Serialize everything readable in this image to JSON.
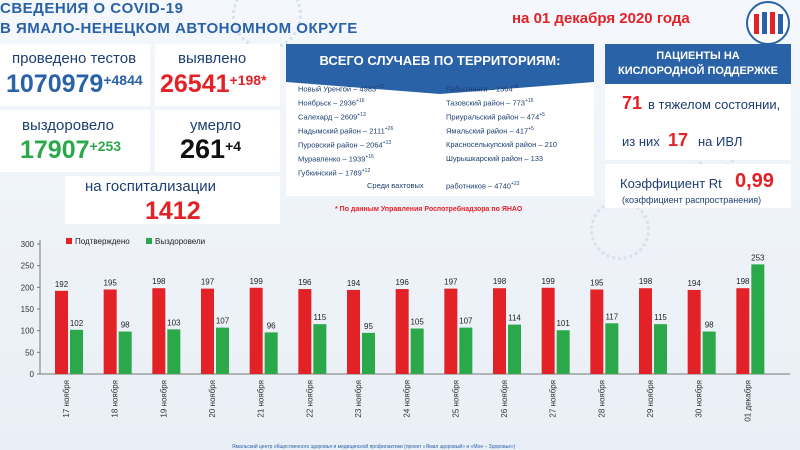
{
  "header": {
    "title_line1": "СВЕДЕНИЯ О COVID-19",
    "title_line2": "В ЯМАЛО-НЕНЕЦКОМ АВТОНОМНОМ ОКРУГЕ",
    "date": "на 01 декабря 2020 года"
  },
  "stats": {
    "tests_label": "проведено тестов",
    "tests_value": "1070979",
    "tests_delta": "+4844",
    "detected_label": "выявлено",
    "detected_value": "26541",
    "detected_delta": "+198*",
    "recovered_label": "выздоровело",
    "recovered_value": "17907",
    "recovered_delta": "+253",
    "died_label": "умерло",
    "died_value": "261",
    "died_delta": "+4",
    "hospital_label": "на госпитализации",
    "hospital_value": "1412"
  },
  "territories": {
    "header": "ВСЕГО СЛУЧАЕВ ПО ТЕРРИТОРИЯМ:",
    "left": [
      {
        "name": "Новый Уренгой – 4983",
        "delta": "+23"
      },
      {
        "name": "Ноябрьск – 2936",
        "delta": "+16"
      },
      {
        "name": "Салехард – 2609",
        "delta": "+13"
      },
      {
        "name": "Надымский район – 2111",
        "delta": "+26"
      },
      {
        "name": "Пуровский район – 2064",
        "delta": "+13"
      },
      {
        "name": "Муравленко – 1939",
        "delta": "+16"
      },
      {
        "name": "Губкинский – 1789",
        "delta": "+12"
      }
    ],
    "right": [
      {
        "name": "Лабытнанги – 1364",
        "delta": "+5"
      },
      {
        "name": "Тазовский район – 773",
        "delta": "+15"
      },
      {
        "name": "Приуральский район – 474",
        "delta": "+5"
      },
      {
        "name": "Ямальский район – 417",
        "delta": "+5"
      },
      {
        "name": "Красноселькупский район – 210",
        "delta": ""
      },
      {
        "name": "Шурышкарский район – 133",
        "delta": ""
      }
    ],
    "shift_label": "Среди вахтовых",
    "shift_label2": "работников – 4740",
    "shift_delta": "+23"
  },
  "note": "* По данным Управления Роспотребнадзора по ЯНАО",
  "oxygen": {
    "header_line1": "ПАЦИЕНТЫ НА",
    "header_line2": "КИСЛОРОДНОЙ ПОДДЕРЖКЕ",
    "severe_value": "71",
    "severe_label": "в тяжелом состоянии,",
    "ivl_prefix": "из них",
    "ivl_value": "17",
    "ivl_label": "на ИВЛ",
    "rt_label": "Коэффициент Rt",
    "rt_value": "0,99",
    "rt_note": "(коэффициент распространения)"
  },
  "chart_data": {
    "type": "bar",
    "categories": [
      "17 ноября",
      "18 ноября",
      "19 ноября",
      "20 ноября",
      "21 ноября",
      "22 ноября",
      "23 ноября",
      "24 ноября",
      "25 ноября",
      "26 ноября",
      "27 ноября",
      "28 ноября",
      "29 ноября",
      "30 ноября",
      "01 декабря"
    ],
    "series": [
      {
        "name": "Подтверждено",
        "color": "#e32227",
        "values": [
          192,
          195,
          198,
          197,
          199,
          196,
          194,
          196,
          197,
          198,
          199,
          195,
          198,
          194,
          198
        ]
      },
      {
        "name": "Выздоровели",
        "color": "#2aa84a",
        "values": [
          102,
          98,
          103,
          107,
          96,
          115,
          95,
          105,
          107,
          114,
          101,
          117,
          115,
          98,
          253
        ]
      }
    ],
    "yticks": [
      0,
      50,
      100,
      150,
      200,
      250,
      300
    ],
    "ylim": [
      0,
      300
    ],
    "legend": "top-left"
  },
  "footer": "Ямальский центр общественного здоровья и медицинской профилактики (проект «Ямал здоровый» и «Мое – Здоровье»)"
}
